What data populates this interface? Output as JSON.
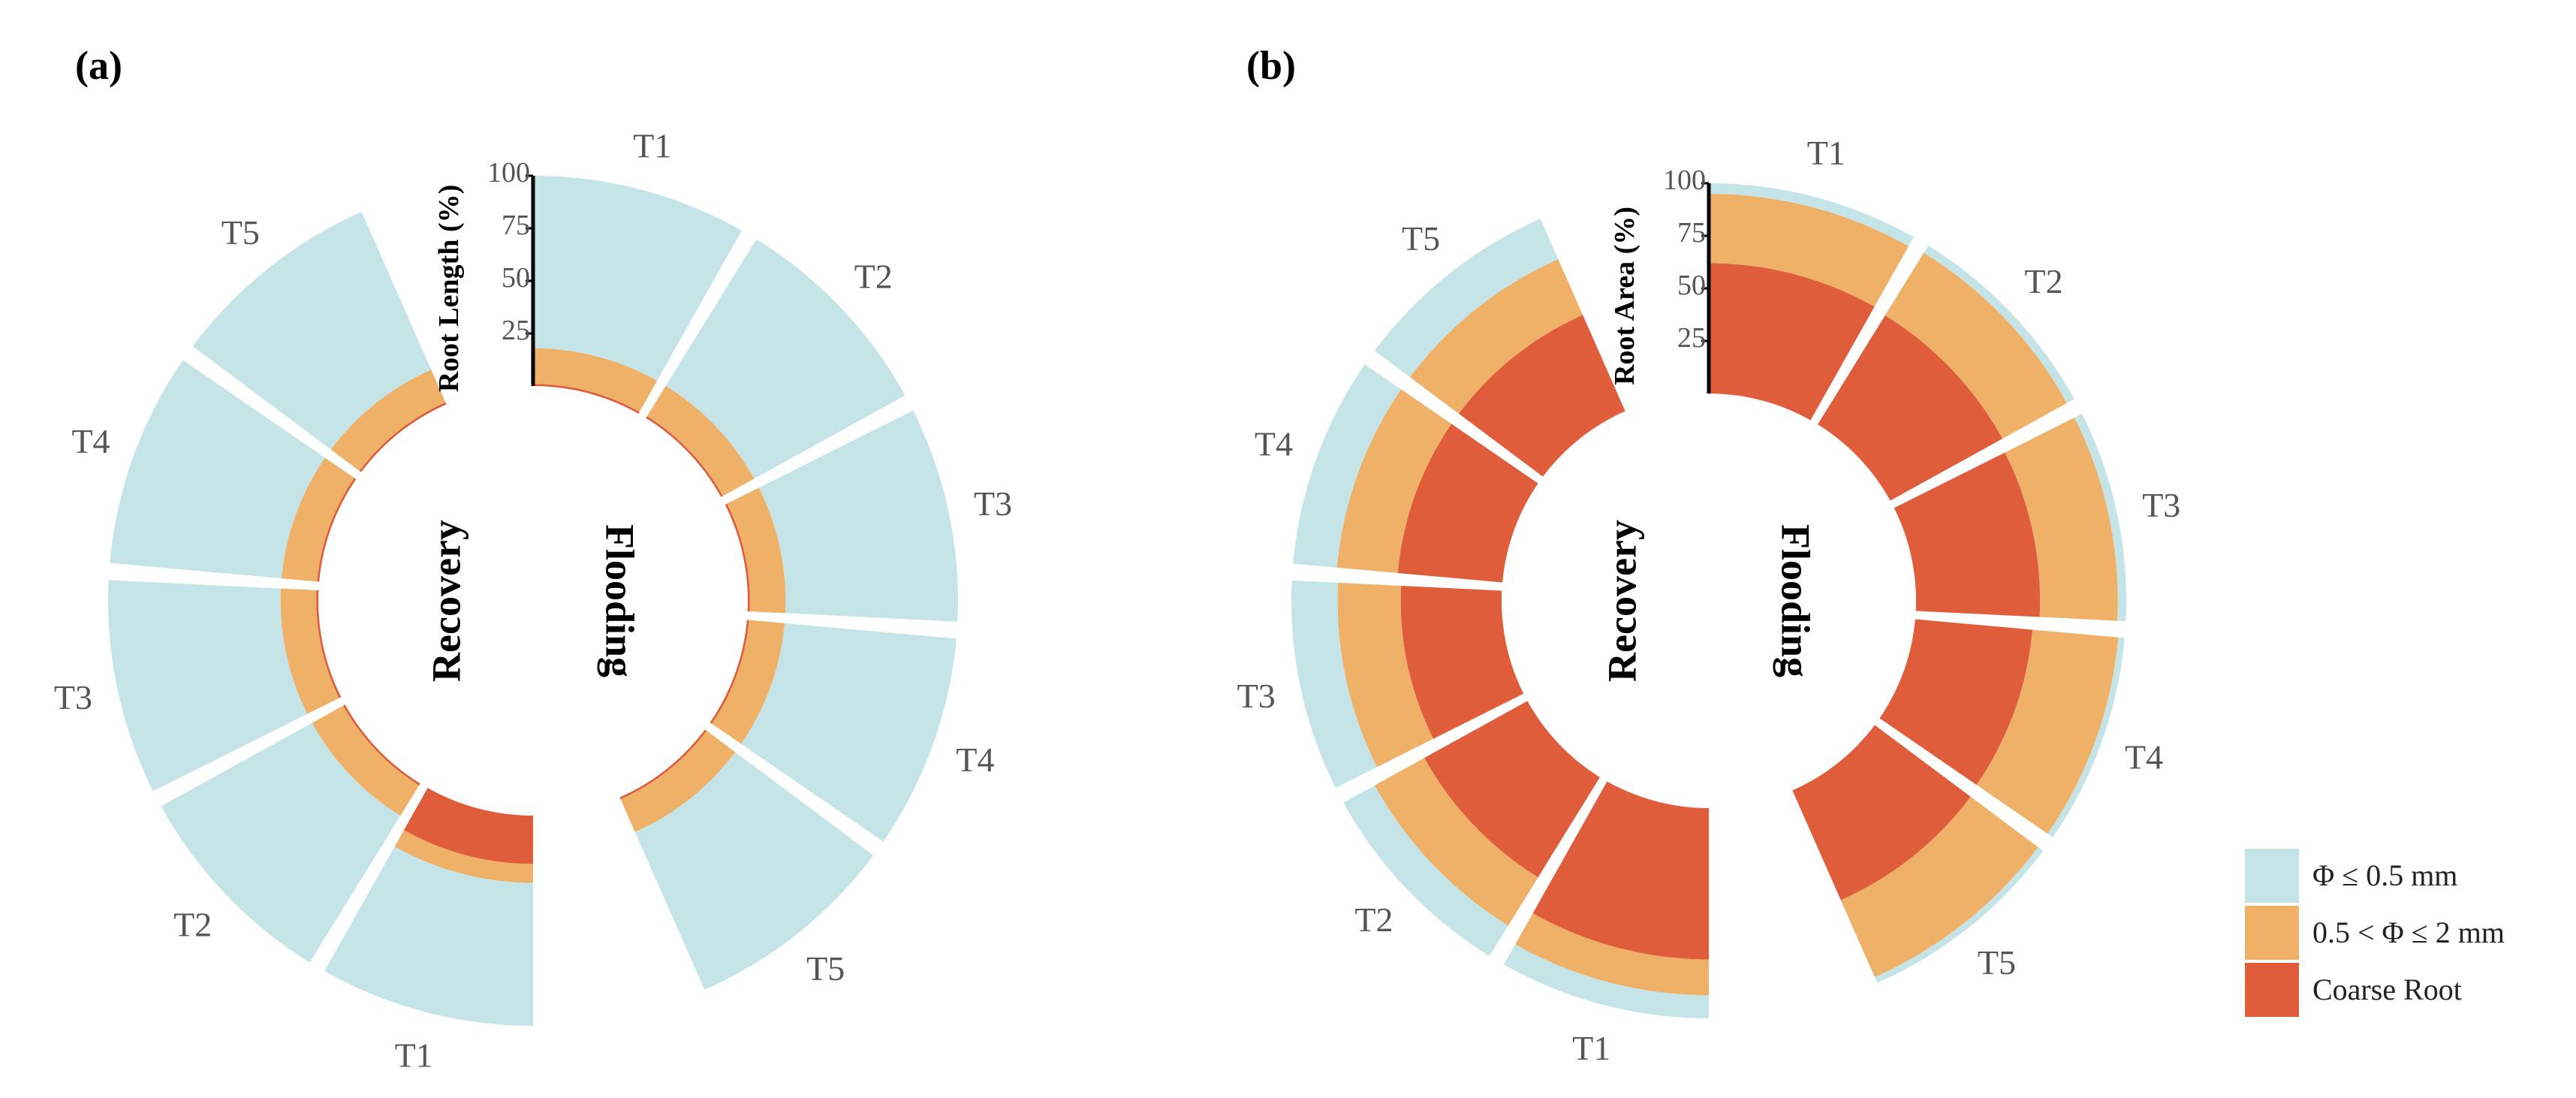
{
  "colors": {
    "fine": "#c5e4e8",
    "medium": "#efb168",
    "coarse": "#e05d3c",
    "axis": "#000000"
  },
  "legend": {
    "items": [
      {
        "label": "Φ ≤ 0.5 mm",
        "color": "#c5e4e8"
      },
      {
        "label": "0.5 < Φ ≤ 2 mm",
        "color": "#efb168"
      },
      {
        "label": "Coarse Root",
        "color": "#e05d3c"
      }
    ]
  },
  "chart_data": [
    {
      "type": "stacked-radial-bar",
      "panel_label": "(a)",
      "ylabel": "Root Length (%)",
      "yticks": [
        "25",
        "50",
        "75",
        "100"
      ],
      "ylim": [
        0,
        100
      ],
      "series_names": [
        "Coarse Root",
        "0.5 < Φ ≤ 2 mm",
        "Φ ≤ 0.5 mm"
      ],
      "groups": [
        {
          "name": "Flooding",
          "bars": [
            {
              "category": "T1",
              "coarse": 1,
              "medium": 17,
              "fine": 82
            },
            {
              "category": "T2",
              "coarse": 1,
              "medium": 17,
              "fine": 82
            },
            {
              "category": "T3",
              "coarse": 1,
              "medium": 17,
              "fine": 82
            },
            {
              "category": "T4",
              "coarse": 1,
              "medium": 17,
              "fine": 82
            },
            {
              "category": "T5",
              "coarse": 1,
              "medium": 17,
              "fine": 82
            }
          ]
        },
        {
          "name": "Recovery",
          "bars": [
            {
              "category": "T1",
              "coarse": 23,
              "medium": 9,
              "fine": 68
            },
            {
              "category": "T2",
              "coarse": 1,
              "medium": 17,
              "fine": 82
            },
            {
              "category": "T3",
              "coarse": 1,
              "medium": 17,
              "fine": 82
            },
            {
              "category": "T4",
              "coarse": 1,
              "medium": 17,
              "fine": 82
            },
            {
              "category": "T5",
              "coarse": 1,
              "medium": 17,
              "fine": 82
            }
          ]
        }
      ]
    },
    {
      "type": "stacked-radial-bar",
      "panel_label": "(b)",
      "ylabel": "Root Area (%)",
      "yticks": [
        "25",
        "50",
        "75",
        "100"
      ],
      "ylim": [
        0,
        100
      ],
      "series_names": [
        "Coarse Root",
        "0.5 < Φ ≤ 2 mm",
        "Φ ≤ 0.5 mm"
      ],
      "groups": [
        {
          "name": "Flooding",
          "bars": [
            {
              "category": "T1",
              "coarse": 62,
              "medium": 33,
              "fine": 5
            },
            {
              "category": "T2",
              "coarse": 61,
              "medium": 35,
              "fine": 4
            },
            {
              "category": "T3",
              "coarse": 59,
              "medium": 37,
              "fine": 4
            },
            {
              "category": "T4",
              "coarse": 56,
              "medium": 41,
              "fine": 3
            },
            {
              "category": "T5",
              "coarse": 57,
              "medium": 40,
              "fine": 3
            }
          ]
        },
        {
          "name": "Recovery",
          "bars": [
            {
              "category": "T1",
              "coarse": 72,
              "medium": 17,
              "fine": 11
            },
            {
              "category": "T2",
              "coarse": 56,
              "medium": 27,
              "fine": 17
            },
            {
              "category": "T3",
              "coarse": 48,
              "medium": 30,
              "fine": 22
            },
            {
              "category": "T4",
              "coarse": 50,
              "medium": 29,
              "fine": 21
            },
            {
              "category": "T5",
              "coarse": 50,
              "medium": 29,
              "fine": 21
            }
          ]
        }
      ]
    }
  ]
}
